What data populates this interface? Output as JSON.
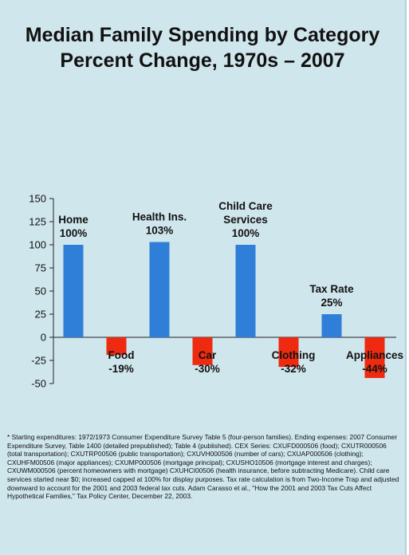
{
  "title": {
    "line1": "Median Family Spending by Category",
    "line2": "Percent Change, 1970s – 2007"
  },
  "colors": {
    "background": "#cfe6ed",
    "positive": "#2f7fd8",
    "negative": "#ee2a10"
  },
  "chart_data": {
    "type": "bar",
    "title": "Median Family Spending by Category Percent Change, 1970s – 2007",
    "categories": [
      "Home",
      "Food",
      "Health Ins.",
      "Car",
      "Child Care Services",
      "Clothing",
      "Tax Rate",
      "Appliances"
    ],
    "label_lines": [
      [
        "Home"
      ],
      [
        "Food"
      ],
      [
        "Health Ins."
      ],
      [
        "Car"
      ],
      [
        "Child Care",
        "Services"
      ],
      [
        "Clothing"
      ],
      [
        "Tax Rate"
      ],
      [
        "Appliances"
      ]
    ],
    "values": [
      100,
      -19,
      103,
      -30,
      100,
      -32,
      25,
      -44
    ],
    "value_labels": [
      "100%",
      "-19%",
      "103%",
      "-30%",
      "100%",
      "-32%",
      "25%",
      "-44%"
    ],
    "ylim": [
      -50,
      150
    ],
    "yticks": [
      150,
      125,
      100,
      75,
      50,
      25,
      0,
      -25,
      -50
    ],
    "grid": false,
    "legend": "none"
  },
  "footnote": "* Starting expenditures: 1972/1973 Consumer Expenditure Survey Table 5 (four-person families). Ending expenses: 2007 Consumer Expenditure Survey, Table 1400 (detailed prepublished); Table 4 (published). CEX Series: CXUFD000506 (food); CXUTR000506 (total transportation); CXUTRP00506 (public transportation); CXUVH000506 (number of cars); CXUAP000506 (clothing); CXUHFM00506 (major appliances); CXUMP000506 (mortgage principal); CXUSHO10506 (mortgage interest and charges); CXUWM000506 (percent homeowners with mortgage) CXUHCI00506 (health insurance, before subtracting Medicare). Child care services started near $0; increased capped at 100% for display purposes. Tax rate calculation is from Two-Income Trap and adjusted downward to account for the 2001 and 2003 federal tax cuts. Adam Carasso et al., \"How the 2001 and 2003 Tax Cuts Affect Hypothetical Families,\" Tax Policy Center, December 22, 2003."
}
